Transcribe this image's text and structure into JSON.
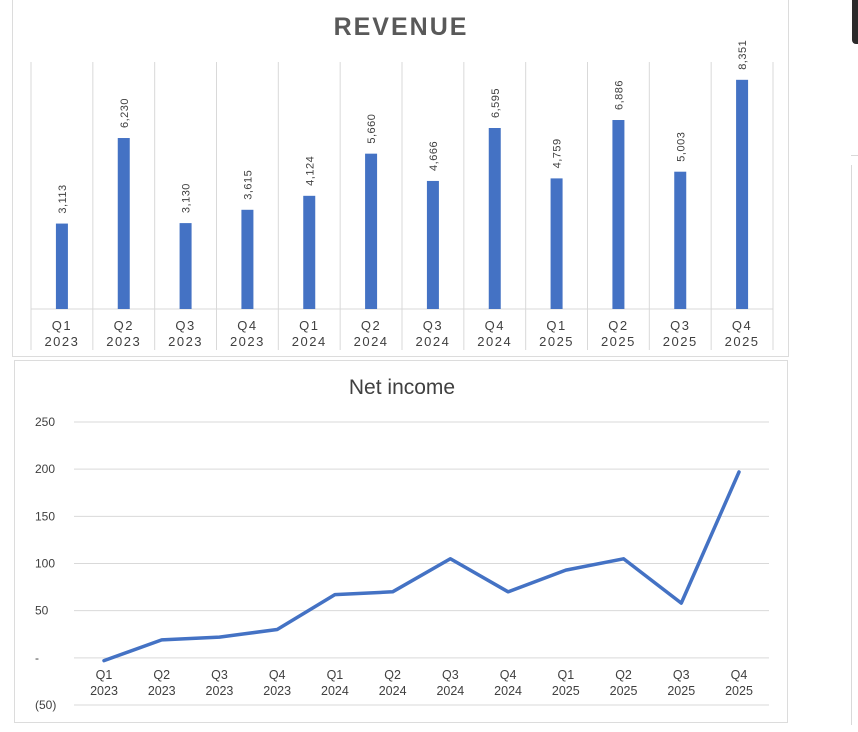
{
  "chart_data": [
    {
      "type": "bar",
      "title": "REVENUE",
      "categories": [
        [
          "Q1",
          "2023"
        ],
        [
          "Q2",
          "2023"
        ],
        [
          "Q3",
          "2023"
        ],
        [
          "Q4",
          "2023"
        ],
        [
          "Q1",
          "2024"
        ],
        [
          "Q2",
          "2024"
        ],
        [
          "Q3",
          "2024"
        ],
        [
          "Q4",
          "2024"
        ],
        [
          "Q1",
          "2025"
        ],
        [
          "Q2",
          "2025"
        ],
        [
          "Q3",
          "2025"
        ],
        [
          "Q4",
          "2025"
        ]
      ],
      "values": [
        3113,
        6230,
        3130,
        3615,
        4124,
        5660,
        4666,
        6595,
        4759,
        6886,
        5003,
        8351
      ],
      "data_labels": [
        "3,113",
        "6,230",
        "3,130",
        "3,615",
        "4,124",
        "5,660",
        "4,666",
        "6,595",
        "4,759",
        "6,886",
        "5,003",
        "8,351"
      ],
      "ylim": [
        0,
        9000
      ],
      "bar_color": "#4472c4",
      "grid": "vertical-category-separators",
      "legend": "none"
    },
    {
      "type": "line",
      "title": "Net income",
      "categories": [
        [
          "Q1",
          "2023"
        ],
        [
          "Q2",
          "2023"
        ],
        [
          "Q3",
          "2023"
        ],
        [
          "Q4",
          "2023"
        ],
        [
          "Q1",
          "2024"
        ],
        [
          "Q2",
          "2024"
        ],
        [
          "Q3",
          "2024"
        ],
        [
          "Q4",
          "2024"
        ],
        [
          "Q1",
          "2025"
        ],
        [
          "Q2",
          "2025"
        ],
        [
          "Q3",
          "2025"
        ],
        [
          "Q4",
          "2025"
        ]
      ],
      "values": [
        -3,
        19,
        22,
        30,
        67,
        70,
        105,
        70,
        93,
        105,
        58,
        197
      ],
      "yticks": [
        -50,
        0,
        50,
        100,
        150,
        200,
        250
      ],
      "ytick_labels": [
        "(50)",
        "-",
        "50",
        "100",
        "150",
        "200",
        "250"
      ],
      "ylim": [
        -50,
        250
      ],
      "line_color": "#4472c4",
      "grid": "horizontal",
      "legend": "none"
    }
  ]
}
